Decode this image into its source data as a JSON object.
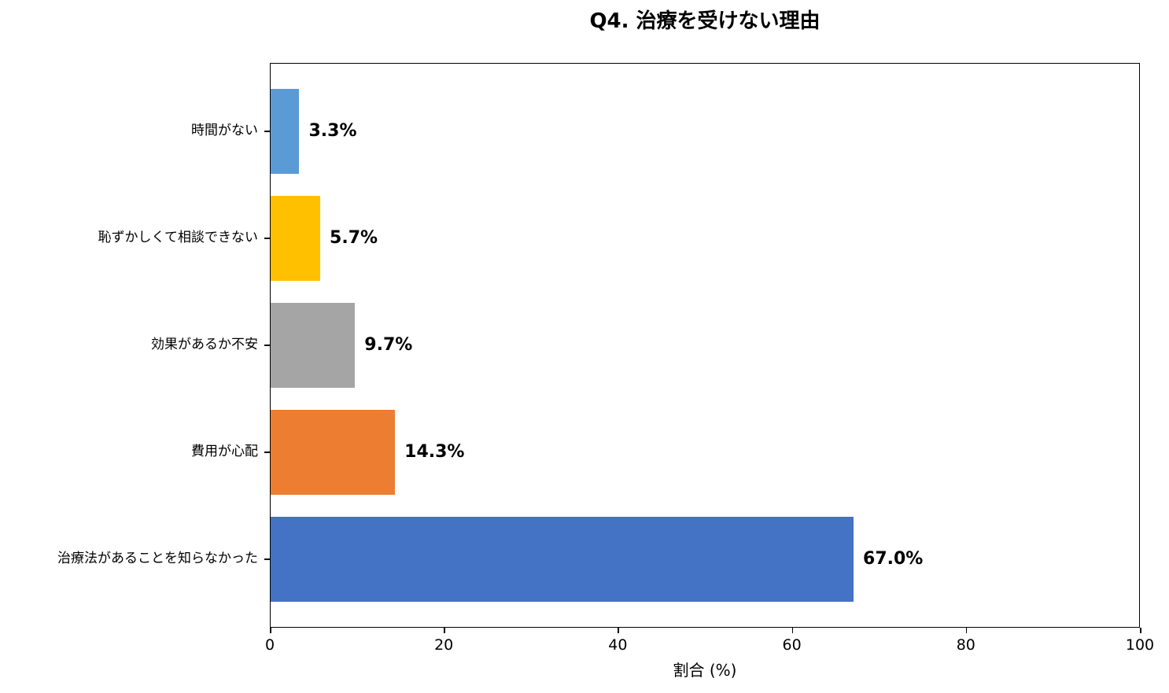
{
  "chart_data": {
    "type": "bar",
    "orientation": "horizontal",
    "title": "Q4. 治療を受けない理由",
    "xlabel": "割合 (%)",
    "ylabel": "",
    "xlim": [
      0,
      100
    ],
    "xticks": [
      0,
      20,
      40,
      60,
      80,
      100
    ],
    "grid": false,
    "legend": null,
    "categories": [
      "時間がない",
      "恥ずかしくて相談できない",
      "効果があるか不安",
      "費用が心配",
      "治療法があることを知らなかった"
    ],
    "values": [
      3.3,
      5.7,
      9.7,
      14.3,
      67.0
    ],
    "value_labels": [
      "3.3%",
      "5.7%",
      "9.7%",
      "14.3%",
      "67.0%"
    ],
    "colors": [
      "#5b9bd5",
      "#ffc000",
      "#a5a5a5",
      "#ed7d31",
      "#4472c4"
    ]
  },
  "title": "Q4. 治療を受けない理由",
  "x_axis": {
    "title": "割合 (%)",
    "ticks": [
      "0",
      "20",
      "40",
      "60",
      "80",
      "100"
    ]
  },
  "bars": [
    {
      "label": "時間がない",
      "value_label": "3.3%"
    },
    {
      "label": "恥ずかしくて相談できない",
      "value_label": "5.7%"
    },
    {
      "label": "効果があるか不安",
      "value_label": "9.7%"
    },
    {
      "label": "費用が心配",
      "value_label": "14.3%"
    },
    {
      "label": "治療法があることを知らなかった",
      "value_label": "67.0%"
    }
  ]
}
